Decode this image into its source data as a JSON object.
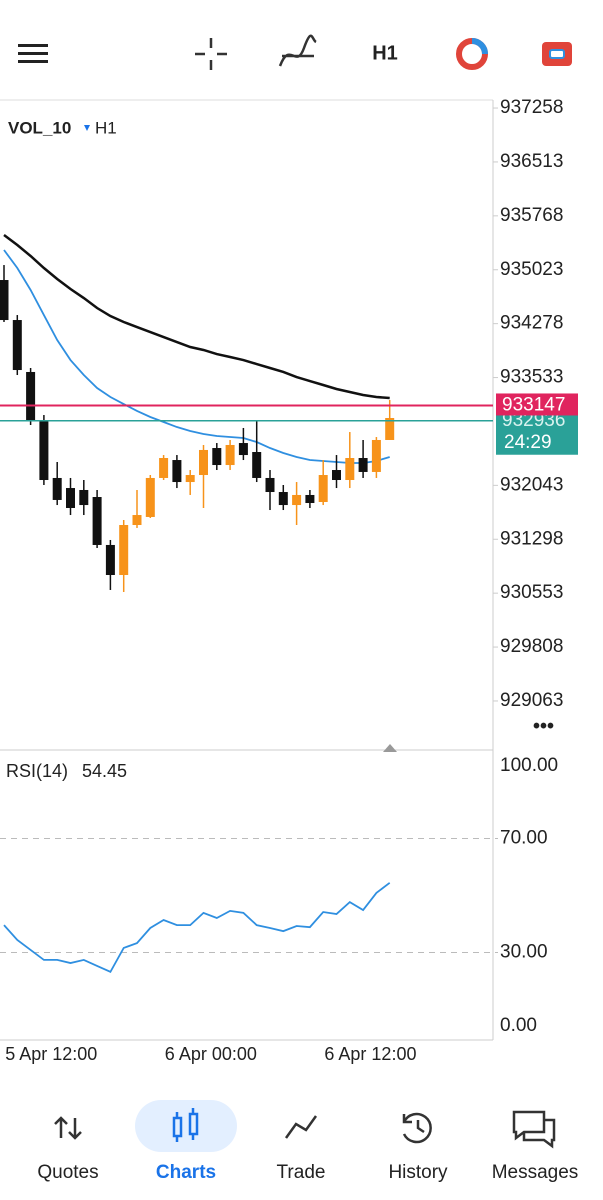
{
  "toolbar": {
    "timeframe": "H1"
  },
  "chart_data": [
    {
      "type": "candlestick",
      "symbol": "VOL_10",
      "timeframe": "H1",
      "up_color": "#f7931a",
      "down_color": "#111111",
      "open": [
        934881,
        934328,
        933610,
        932946,
        932145,
        932006,
        931979,
        931882,
        931219,
        930804,
        931495,
        931606,
        932145,
        932393,
        932089,
        932186,
        932559,
        932324,
        932628,
        932504,
        932145,
        931951,
        931771,
        931910,
        931813,
        932255,
        932117,
        932421,
        932228,
        932670
      ],
      "high": [
        935088,
        934397,
        933665,
        933015,
        932366,
        932145,
        932117,
        931979,
        931288,
        931564,
        931979,
        932186,
        932462,
        932462,
        932255,
        932601,
        932628,
        932670,
        932836,
        932946,
        932255,
        932048,
        932089,
        931979,
        932393,
        932462,
        932780,
        932670,
        932711,
        933223
      ],
      "low": [
        934301,
        933568,
        932877,
        932048,
        931771,
        931633,
        931633,
        931177,
        930597,
        930569,
        931454,
        931592,
        932117,
        932006,
        931910,
        931730,
        932255,
        932255,
        932393,
        932089,
        931702,
        931702,
        931495,
        931730,
        931771,
        932006,
        932006,
        932145,
        932145,
        932670
      ],
      "close": [
        934328,
        933637,
        932946,
        932117,
        931841,
        931730,
        931771,
        931219,
        930804,
        931495,
        931633,
        932145,
        932421,
        932089,
        932186,
        932532,
        932324,
        932601,
        932462,
        932145,
        931951,
        931771,
        931910,
        931799,
        932186,
        932117,
        932421,
        932228,
        932670,
        932974
      ],
      "series": [
        {
          "color": "#111111",
          "values": [
            935503,
            935365,
            935213,
            935047,
            934895,
            934757,
            934632,
            934494,
            934383,
            934301,
            934231,
            934162,
            934093,
            934024,
            933955,
            933914,
            933858,
            933817,
            933775,
            933720,
            933665,
            933610,
            933540,
            933485,
            933430,
            933375,
            933333,
            933292,
            933264,
            933250
          ]
        },
        {
          "color": "#2f8fe0",
          "values": [
            935296,
            935047,
            934743,
            934397,
            934052,
            933775,
            933568,
            933388,
            933264,
            933167,
            933071,
            932988,
            932919,
            932849,
            932794,
            932753,
            932725,
            932711,
            932697,
            932642,
            932559,
            932490,
            932435,
            932393,
            932380,
            932366,
            932352,
            932352,
            932380,
            932435
          ]
        }
      ],
      "bid": 933147,
      "bid_color": "#e0245e",
      "ask": 932936,
      "ask_color": "#2aa198",
      "countdown": "24:29",
      "ylim": [
        928413,
        937369
      ],
      "yticks": [
        929063,
        929808,
        930553,
        931298,
        932043,
        933533,
        934278,
        935023,
        935768,
        936513,
        937258
      ],
      "xticks": [
        {
          "value": 4,
          "label": "5 Apr 12:00"
        },
        {
          "value": 16,
          "label": "6 Apr 00:00"
        },
        {
          "value": 28,
          "label": "6 Apr 12:00"
        }
      ]
    },
    {
      "type": "line",
      "title": "RSI(14)",
      "color": "#2f8fe0",
      "values": [
        39.6,
        34.4,
        30.9,
        27.4,
        27.4,
        26.3,
        27.4,
        25.3,
        23.2,
        31.6,
        33.3,
        38.6,
        41.4,
        39.6,
        39.6,
        43.9,
        42.1,
        44.6,
        43.9,
        39.6,
        38.6,
        37.5,
        39.3,
        38.9,
        44.2,
        43.5,
        47.7,
        44.9,
        50.9,
        54.45
      ],
      "ylim": [
        0,
        100
      ],
      "yticks": [
        {
          "value": 0,
          "label": "0.00"
        },
        {
          "value": 30,
          "label": "30.00"
        },
        {
          "value": 70,
          "label": "70.00"
        },
        {
          "value": 100,
          "label": "100.00"
        }
      ]
    }
  ],
  "nav": {
    "items": [
      "Quotes",
      "Charts",
      "Trade",
      "History",
      "Messages"
    ],
    "active": 1
  }
}
